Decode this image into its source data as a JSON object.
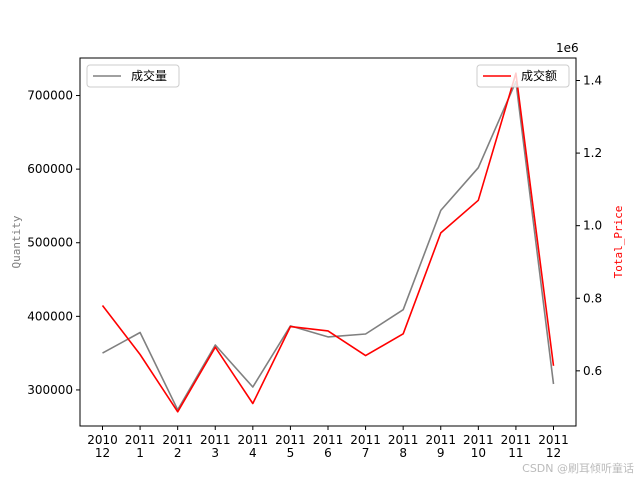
{
  "chart_data": {
    "type": "line",
    "categories": [
      [
        "2010",
        "12"
      ],
      [
        "2011",
        "1"
      ],
      [
        "2011",
        "2"
      ],
      [
        "2011",
        "3"
      ],
      [
        "2011",
        "4"
      ],
      [
        "2011",
        "5"
      ],
      [
        "2011",
        "6"
      ],
      [
        "2011",
        "7"
      ],
      [
        "2011",
        "8"
      ],
      [
        "2011",
        "9"
      ],
      [
        "2011",
        "10"
      ],
      [
        "2011",
        "11"
      ],
      [
        "2011",
        "12"
      ]
    ],
    "series": [
      {
        "name": "成交量",
        "axis": "left",
        "color": "#808080",
        "values": [
          350000,
          378000,
          273000,
          361000,
          304000,
          387000,
          372000,
          376000,
          409000,
          544000,
          602000,
          719000,
          308000
        ]
      },
      {
        "name": "成交额",
        "axis": "right",
        "color": "#ff0000",
        "values": [
          780000,
          645000,
          487000,
          665000,
          510000,
          722000,
          710000,
          642000,
          702000,
          980000,
          1070000,
          1420000,
          614000
        ]
      }
    ],
    "ylabel_left": "Quantity",
    "ylabel_right": "Total_Price",
    "ylim_left": [
      251000,
      751000
    ],
    "ylim_right": [
      448000,
      1462000
    ],
    "yticks_left": [
      300000,
      400000,
      500000,
      600000,
      700000
    ],
    "yticks_right": [
      0.6,
      0.8,
      1.0,
      1.2,
      1.4
    ],
    "right_scale": 1000000,
    "right_offset_label": "1e6",
    "legend_left": "top-left",
    "legend_right": "top-right",
    "grid": false
  },
  "watermark": "CSDN @刷耳倾听童话"
}
